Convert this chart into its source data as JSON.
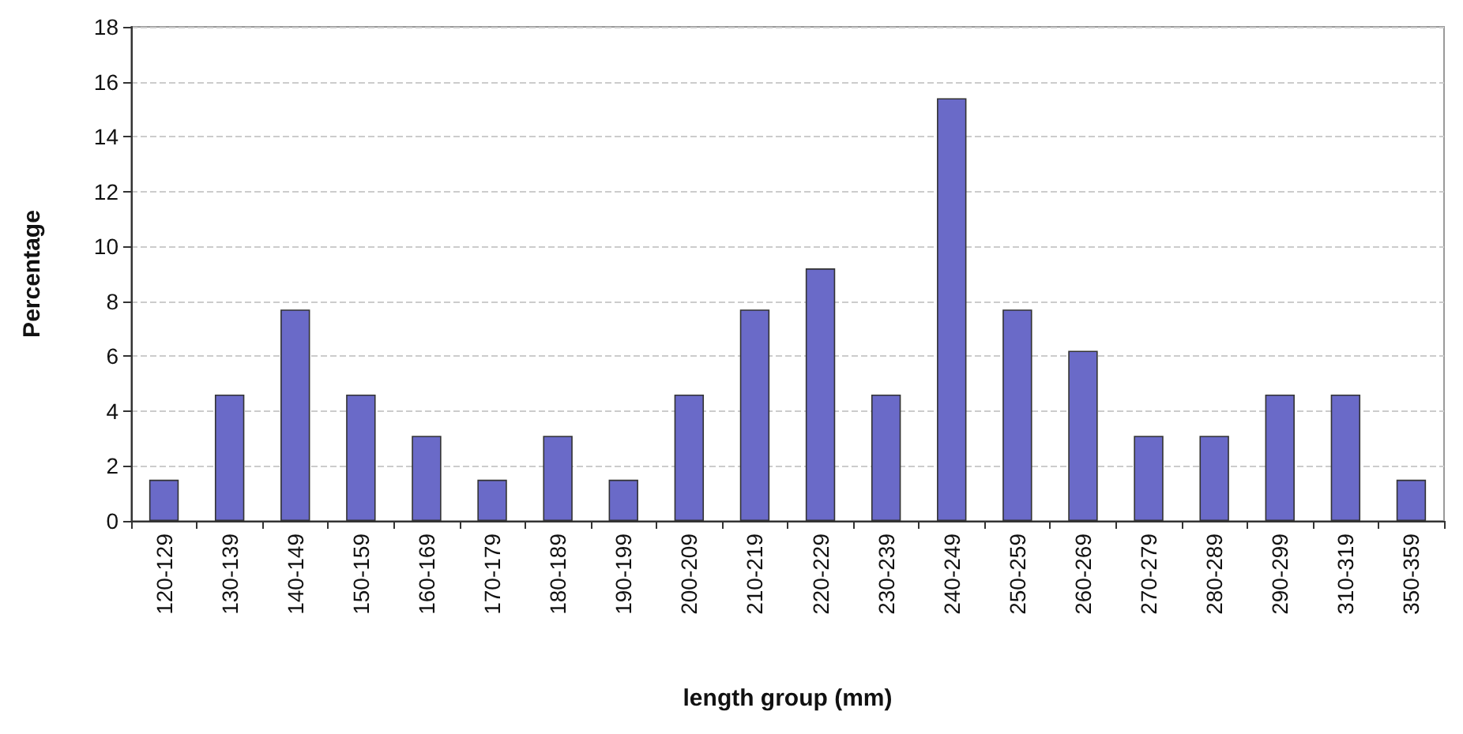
{
  "chart_data": {
    "type": "bar",
    "xlabel": "length group (mm)",
    "ylabel": "Percentage",
    "categories": [
      "120-129",
      "130-139",
      "140-149",
      "150-159",
      "160-169",
      "170-179",
      "180-189",
      "190-199",
      "200-209",
      "210-219",
      "220-229",
      "230-239",
      "240-249",
      "250-259",
      "260-269",
      "270-279",
      "280-289",
      "290-299",
      "310-319",
      "350-359"
    ],
    "values": [
      1.5,
      4.6,
      7.7,
      4.6,
      3.1,
      1.5,
      3.1,
      1.5,
      4.6,
      7.7,
      9.2,
      4.6,
      15.4,
      7.7,
      6.2,
      3.1,
      3.1,
      4.6,
      4.6,
      1.5
    ],
    "color": "#6a6ac8",
    "ylim": [
      0,
      18
    ],
    "yticks": [
      0,
      2,
      4,
      6,
      8,
      10,
      12,
      14,
      16,
      18
    ],
    "grid": "y"
  }
}
